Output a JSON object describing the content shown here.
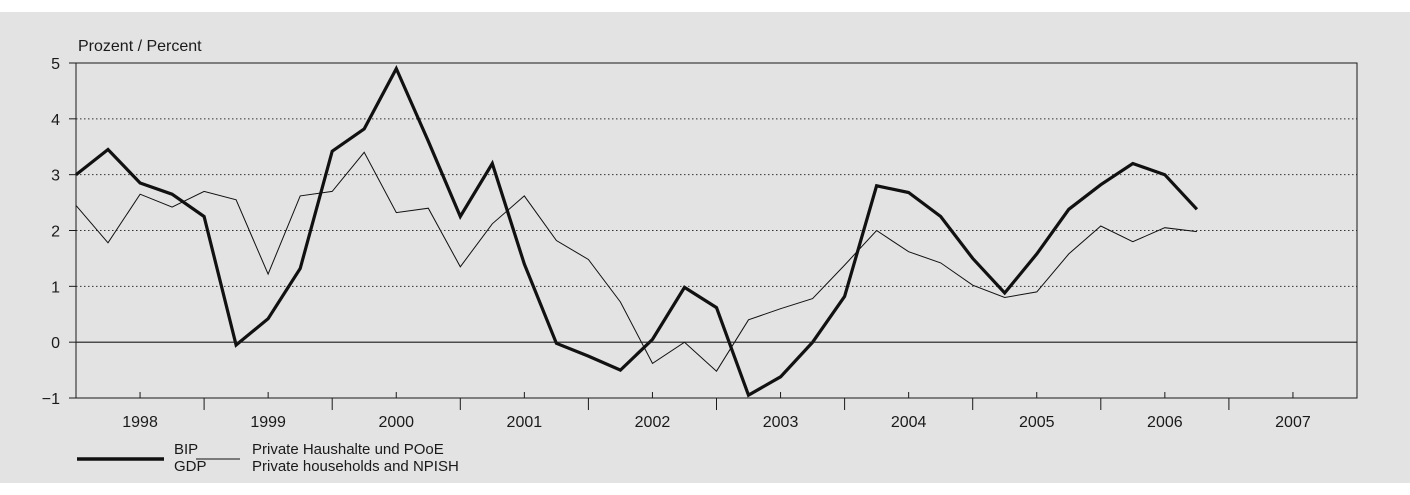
{
  "chart_data": {
    "type": "line",
    "unit_label": "Prozent / Percent",
    "x_tick_labels": [
      "1998",
      "1999",
      "2000",
      "2001",
      "2002",
      "2003",
      "2004",
      "2005",
      "2006",
      "2007"
    ],
    "xlim": [
      1998,
      2008
    ],
    "ylim": [
      -1,
      5
    ],
    "y_ticks": [
      5,
      4,
      3,
      2,
      1,
      0,
      -1
    ],
    "y_tick_labels": [
      "5",
      "4",
      "3",
      "2",
      "1",
      "0",
      "−1"
    ],
    "grid": "horizontal dotted",
    "legend_position": "bottom-left",
    "series": [
      {
        "name_de": "BIP",
        "name_en": "GDP",
        "style": "thick",
        "points": [
          [
            1998.0,
            3.0
          ],
          [
            1998.25,
            3.45
          ],
          [
            1998.5,
            2.85
          ],
          [
            1998.75,
            2.65
          ],
          [
            1999.0,
            2.25
          ],
          [
            1999.25,
            -0.05
          ],
          [
            1999.5,
            0.42
          ],
          [
            1999.75,
            1.32
          ],
          [
            2000.0,
            3.42
          ],
          [
            2000.25,
            3.82
          ],
          [
            2000.5,
            4.9
          ],
          [
            2000.75,
            3.6
          ],
          [
            2001.0,
            2.25
          ],
          [
            2001.25,
            3.2
          ],
          [
            2001.5,
            1.4
          ],
          [
            2001.75,
            -0.02
          ],
          [
            2002.0,
            -0.25
          ],
          [
            2002.25,
            -0.5
          ],
          [
            2002.5,
            0.05
          ],
          [
            2002.75,
            0.98
          ],
          [
            2003.0,
            0.62
          ],
          [
            2003.25,
            -0.95
          ],
          [
            2003.5,
            -0.62
          ],
          [
            2003.75,
            0.0
          ],
          [
            2004.0,
            0.82
          ],
          [
            2004.25,
            2.8
          ],
          [
            2004.5,
            2.68
          ],
          [
            2004.75,
            2.25
          ],
          [
            2005.0,
            1.5
          ],
          [
            2005.25,
            0.88
          ],
          [
            2005.5,
            1.58
          ],
          [
            2005.75,
            2.38
          ],
          [
            2006.0,
            2.82
          ],
          [
            2006.25,
            3.2
          ],
          [
            2006.5,
            3.0
          ],
          [
            2006.75,
            2.38
          ]
        ]
      },
      {
        "name_de": "Private Haushalte und POoE",
        "name_en": "Private households and NPISH",
        "style": "thin",
        "points": [
          [
            1998.0,
            2.45
          ],
          [
            1998.25,
            1.78
          ],
          [
            1998.5,
            2.65
          ],
          [
            1998.75,
            2.42
          ],
          [
            1999.0,
            2.7
          ],
          [
            1999.25,
            2.55
          ],
          [
            1999.5,
            1.22
          ],
          [
            1999.75,
            2.62
          ],
          [
            2000.0,
            2.7
          ],
          [
            2000.25,
            3.4
          ],
          [
            2000.5,
            2.32
          ],
          [
            2000.75,
            2.4
          ],
          [
            2001.0,
            1.35
          ],
          [
            2001.25,
            2.12
          ],
          [
            2001.5,
            2.62
          ],
          [
            2001.75,
            1.82
          ],
          [
            2002.0,
            1.48
          ],
          [
            2002.25,
            0.72
          ],
          [
            2002.5,
            -0.38
          ],
          [
            2002.75,
            0.0
          ],
          [
            2003.0,
            -0.52
          ],
          [
            2003.25,
            0.4
          ],
          [
            2003.5,
            0.6
          ],
          [
            2003.75,
            0.78
          ],
          [
            2004.0,
            1.38
          ],
          [
            2004.25,
            2.0
          ],
          [
            2004.5,
            1.62
          ],
          [
            2004.75,
            1.42
          ],
          [
            2005.0,
            1.02
          ],
          [
            2005.25,
            0.8
          ],
          [
            2005.5,
            0.9
          ],
          [
            2005.75,
            1.58
          ],
          [
            2006.0,
            2.08
          ],
          [
            2006.25,
            1.8
          ],
          [
            2006.5,
            2.05
          ],
          [
            2006.75,
            1.98
          ]
        ]
      }
    ]
  }
}
